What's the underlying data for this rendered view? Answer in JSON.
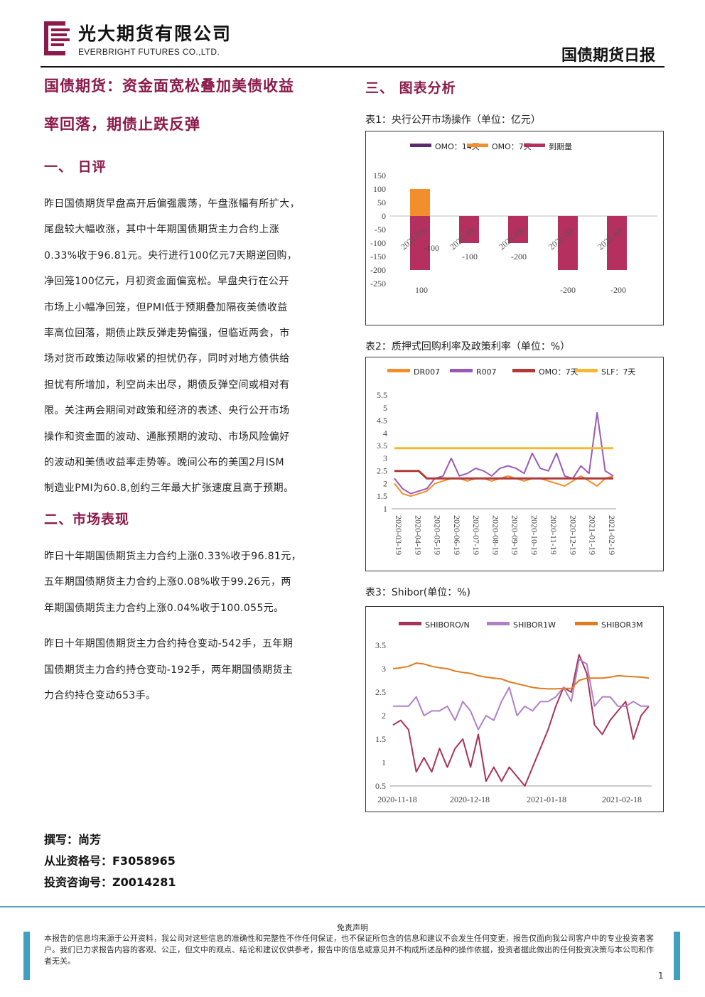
{
  "header": {
    "company_cn": "光大期货有限公司",
    "company_en": "EVERBRIGHT FUTURES CO.,LTD.",
    "report_type": "国债期货日报",
    "brand_color": "#8b1a4a"
  },
  "article": {
    "title_line1": "国债期货：资金面宽松叠加美债收益",
    "title_line2": "率回落，期债止跌反弹",
    "section1_title": "一、 日评",
    "section1_lines": [
      "昨日国债期货早盘高开后偏强震荡，午盘涨幅有所扩大，",
      "尾盘较大幅收涨，其中十年期国债期货主力合约上涨",
      "0.33%收于96.81元。央行进行100亿元7天期逆回购，",
      "净回笼100亿元，月初资金面偏宽松。早盘央行在公开",
      "市场上小幅净回笼，但PMI低于预期叠加隔夜美债收益",
      "率高位回落，期债止跌反弹走势偏强，但临近两会，市",
      "场对货币政策边际收紧的担忧仍存，同时对地方债供给",
      "担忧有所增加，利空尚未出尽，期债反弹空间或相对有",
      "限。关注两会期间对政策和经济的表述、央行公开市场",
      "操作和资金面的波动、通胀预期的波动、市场风险偏好",
      "的波动和美债收益率走势等。晚间公布的美国2月ISM",
      "制造业PMI为60.8,创约三年最大扩张速度且高于预期。"
    ],
    "section2_title": "二、市场表现",
    "section2_para1": [
      "昨日十年期国债期货主力合约上涨0.33%收于96.81元，",
      "五年期国债期货主力合约上涨0.08%收于99.26元，两",
      "年期国债期货主力合约上涨0.04%收于100.055元。"
    ],
    "section2_para2": [
      "昨日十年期国债期货主力合约持仓变动-542手，五年期",
      "国债期货主力合约持仓变动-192手，两年期国债期货主",
      "力合约持仓变动653手。"
    ],
    "section3_title": "三、 图表分析"
  },
  "author": {
    "writer": "撰写：尚芳",
    "license": "从业资格号：F3058965",
    "consult": "投资咨询号：Z0014281"
  },
  "chart_data": [
    {
      "type": "bar",
      "title": "表1：央行公开市场操作（单位：亿元）",
      "categories": [
        "2021-03-",
        "2021-03-",
        "2021-03-",
        "2021-03-",
        "2021-03-"
      ],
      "series": [
        {
          "name": "OMO：14天",
          "color": "#5b2a6e",
          "values": [
            0,
            0,
            0,
            0,
            0
          ]
        },
        {
          "name": "OMO：7天",
          "color": "#f28e2b",
          "values": [
            100,
            0,
            0,
            0,
            0
          ]
        },
        {
          "name": "到期量",
          "color": "#b5305e",
          "values": [
            -200,
            -100,
            -100,
            -200,
            -200
          ]
        }
      ],
      "data_labels": [
        "100",
        "-100",
        "-100",
        "-200",
        "-200",
        "-200"
      ],
      "ylim": [
        -250,
        150
      ],
      "yticks": [
        "150",
        "100",
        "50",
        "0",
        "-50",
        "-100",
        "-150",
        "-200",
        "-250"
      ],
      "legend": "top"
    },
    {
      "type": "line",
      "title": "表2：质押式回购利率及政策利率（单位：%）",
      "xticks": [
        "2020-03-19",
        "2020-04-19",
        "2020-05-19",
        "2020-06-19",
        "2020-07-19",
        "2020-08-19",
        "2020-09-19",
        "2020-10-19",
        "2020-11-19",
        "2020-12-19",
        "2021-01-19",
        "2021-02-19"
      ],
      "yticks": [
        "5.5",
        "5",
        "4.5",
        "4",
        "3.5",
        "3",
        "2.5",
        "2",
        "1.5",
        "1"
      ],
      "ylim": [
        1,
        5.5
      ],
      "series": [
        {
          "name": "DR007",
          "color": "#f28e2b",
          "values": [
            2.0,
            1.6,
            1.5,
            1.6,
            1.7,
            2.0,
            2.1,
            2.2,
            2.2,
            2.1,
            2.2,
            2.2,
            2.1,
            2.2,
            2.3,
            2.2,
            2.1,
            2.2,
            2.2,
            2.1,
            2.0,
            1.9,
            2.1,
            2.3,
            2.1,
            1.9,
            2.2,
            2.3
          ]
        },
        {
          "name": "R007",
          "color": "#9b59b6",
          "values": [
            2.2,
            1.8,
            1.6,
            1.7,
            1.8,
            2.2,
            2.3,
            3.0,
            2.3,
            2.4,
            2.6,
            2.5,
            2.3,
            2.6,
            2.7,
            2.6,
            2.4,
            3.2,
            2.6,
            2.5,
            3.2,
            2.3,
            2.2,
            2.7,
            2.4,
            4.8,
            2.5,
            2.3
          ]
        },
        {
          "name": "OMO：7天",
          "color": "#b03a3a",
          "values": [
            2.5,
            2.5,
            2.5,
            2.5,
            2.2,
            2.2,
            2.2,
            2.2,
            2.2,
            2.2,
            2.2,
            2.2,
            2.2,
            2.2,
            2.2,
            2.2,
            2.2,
            2.2,
            2.2,
            2.2,
            2.2,
            2.2,
            2.2,
            2.2,
            2.2,
            2.2,
            2.2,
            2.2
          ]
        },
        {
          "name": "SLF：7天",
          "color": "#f5b82e",
          "values": [
            3.4,
            3.4,
            3.4,
            3.4,
            3.4,
            3.4,
            3.4,
            3.4,
            3.4,
            3.4,
            3.4,
            3.4,
            3.4,
            3.4,
            3.4,
            3.4,
            3.4,
            3.4,
            3.4,
            3.4,
            3.4,
            3.4,
            3.4,
            3.4,
            3.4,
            3.4,
            3.4,
            3.4
          ]
        }
      ],
      "legend": "top"
    },
    {
      "type": "line",
      "title": "表3：Shibor(单位：%)",
      "xticks": [
        "2020-11-18",
        "2020-12-18",
        "2021-01-18",
        "2021-02-18"
      ],
      "yticks": [
        "3.5",
        "3",
        "2.5",
        "2",
        "1.5",
        "1",
        "0.5"
      ],
      "ylim": [
        0.5,
        3.5
      ],
      "series": [
        {
          "name": "SHIBORO/N",
          "color": "#a8325a",
          "values": [
            1.8,
            1.9,
            1.7,
            0.8,
            1.1,
            0.8,
            1.3,
            0.9,
            1.3,
            1.5,
            0.9,
            1.6,
            0.6,
            0.9,
            0.6,
            0.9,
            0.7,
            0.5,
            0.9,
            1.3,
            1.7,
            2.2,
            2.6,
            2.5,
            3.3,
            2.9,
            1.8,
            1.6,
            1.9,
            2.1,
            2.3,
            1.5,
            2.0,
            2.2
          ]
        },
        {
          "name": "SHIBOR1W",
          "color": "#b07fc7",
          "values": [
            2.2,
            2.2,
            2.2,
            2.4,
            2.0,
            2.1,
            2.1,
            2.2,
            1.9,
            2.3,
            2.1,
            1.7,
            2.0,
            1.9,
            2.3,
            2.6,
            2.0,
            2.2,
            2.1,
            2.3,
            2.3,
            2.4,
            2.6,
            2.3,
            3.2,
            3.1,
            2.2,
            2.4,
            2.4,
            2.2,
            2.2,
            2.3,
            2.2,
            2.2
          ]
        },
        {
          "name": "SHIBOR3M",
          "color": "#e07b1e",
          "values": [
            3.0,
            3.02,
            3.05,
            3.12,
            3.1,
            3.05,
            3.02,
            3.0,
            2.95,
            2.92,
            2.9,
            2.85,
            2.82,
            2.8,
            2.78,
            2.72,
            2.68,
            2.64,
            2.6,
            2.58,
            2.57,
            2.57,
            2.58,
            2.58,
            2.75,
            2.8,
            2.8,
            2.8,
            2.82,
            2.85,
            2.84,
            2.83,
            2.82,
            2.8
          ]
        }
      ],
      "legend": "top"
    }
  ],
  "footer": {
    "disclaimer_title": "免责声明",
    "disclaimer_text": "本报告的信息均来源于公开资料，我公司对这些信息的准确性和完整性不作任何保证，也不保证所包含的信息和建议不会发生任何变更，报告仅面向我公司客户中的专业投资者客户。我们已力求报告内容的客观、公正，但文中的观点、结论和建议仅供参考，报告中的信息或意见并不构成所述品种的操作依据，投资者据此做出的任何投资决策与本公司和作者无关。",
    "page_number": "1"
  }
}
